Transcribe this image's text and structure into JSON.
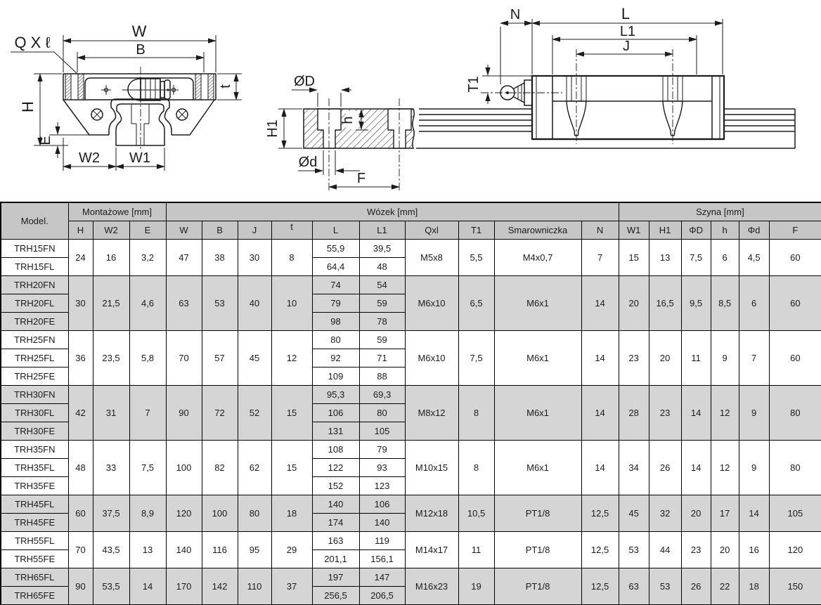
{
  "page": {
    "background": "#ffffff",
    "line_color": "#1b1b1b"
  },
  "diagrams": {
    "front_view": {
      "labels": {
        "qxl": "Q X ℓ",
        "w": "W",
        "b": "B",
        "t": "t",
        "h": "H",
        "e": "E",
        "w2": "W2",
        "w1": "W1"
      }
    },
    "rail_section": {
      "labels": {
        "d_big": "ØD",
        "h1": "H1",
        "h": "h",
        "d_small": "Ød",
        "f": "F"
      }
    },
    "side_view": {
      "labels": {
        "n": "N",
        "l": "L",
        "l1": "L1",
        "j": "J",
        "t1": "T1"
      }
    }
  },
  "table": {
    "colors": {
      "header_bg": "#c6c6c6",
      "shaded_row_bg": "#d5d5d5",
      "row_bg": "#ffffff",
      "border": "#000000"
    },
    "header": {
      "model_label": "Model.",
      "group_headers": [
        {
          "label": "Montażowe [mm]",
          "span": 3
        },
        {
          "label": "Wózek [mm]",
          "span": 10
        },
        {
          "label": "Szyna [mm]",
          "span": 6
        }
      ],
      "columns": [
        {
          "key": "H",
          "label": "H"
        },
        {
          "key": "W2",
          "label": "W2"
        },
        {
          "key": "E",
          "label": "E"
        },
        {
          "key": "W",
          "label": "W"
        },
        {
          "key": "B",
          "label": "B"
        },
        {
          "key": "J",
          "label": "J"
        },
        {
          "key": "t",
          "label": "t"
        },
        {
          "key": "L",
          "label": "L"
        },
        {
          "key": "L1",
          "label": "L1"
        },
        {
          "key": "Qxl",
          "label": "Qxl"
        },
        {
          "key": "T1",
          "label": "T1"
        },
        {
          "key": "Smar",
          "label": "Smarowniczka"
        },
        {
          "key": "N",
          "label": "N"
        },
        {
          "key": "W1",
          "label": "W1"
        },
        {
          "key": "H1",
          "label": "H1"
        },
        {
          "key": "FD",
          "label": "ΦD"
        },
        {
          "key": "h",
          "label": "h"
        },
        {
          "key": "Fd",
          "label": "Φd"
        },
        {
          "key": "F",
          "label": "F"
        }
      ]
    },
    "groups": [
      {
        "shaded": false,
        "models": [
          "TRH15FN",
          "TRH15FL"
        ],
        "merged": {
          "H": "24",
          "W2": "16",
          "E": "3,2",
          "W": "47",
          "B": "38",
          "J": "30",
          "t": "8",
          "Qxl": "M5x8",
          "T1": "5,5",
          "Smar": "M4x0,7",
          "N": "7",
          "W1": "15",
          "H1": "13",
          "FD": "7,5",
          "h": "6",
          "Fd": "4,5",
          "F": "60"
        },
        "L": [
          "55,9",
          "64,4"
        ],
        "L1": [
          "39,5",
          "48"
        ]
      },
      {
        "shaded": true,
        "models": [
          "TRH20FN",
          "TRH20FL",
          "TRH20FE"
        ],
        "merged": {
          "H": "30",
          "W2": "21,5",
          "E": "4,6",
          "W": "63",
          "B": "53",
          "J": "40",
          "t": "10",
          "Qxl": "M6x10",
          "T1": "6,5",
          "Smar": "M6x1",
          "N": "14",
          "W1": "20",
          "H1": "16,5",
          "FD": "9,5",
          "h": "8,5",
          "Fd": "6",
          "F": "60"
        },
        "L": [
          "74",
          "79",
          "98"
        ],
        "L1": [
          "54",
          "59",
          "78"
        ]
      },
      {
        "shaded": false,
        "models": [
          "TRH25FN",
          "TRH25FL",
          "TRH25FE"
        ],
        "merged": {
          "H": "36",
          "W2": "23,5",
          "E": "5,8",
          "W": "70",
          "B": "57",
          "J": "45",
          "t": "12",
          "Qxl": "M6x10",
          "T1": "7,5",
          "Smar": "M6x1",
          "N": "14",
          "W1": "23",
          "H1": "20",
          "FD": "11",
          "h": "9",
          "Fd": "7",
          "F": "60"
        },
        "L": [
          "80",
          "92",
          "109"
        ],
        "L1": [
          "59",
          "71",
          "88"
        ]
      },
      {
        "shaded": true,
        "models": [
          "TRH30FN",
          "TRH30FL",
          "TRH30FE"
        ],
        "merged": {
          "H": "42",
          "W2": "31",
          "E": "7",
          "W": "90",
          "B": "72",
          "J": "52",
          "t": "15",
          "Qxl": "M8x12",
          "T1": "8",
          "Smar": "M6x1",
          "N": "14",
          "W1": "28",
          "H1": "23",
          "FD": "14",
          "h": "12",
          "Fd": "9",
          "F": "80"
        },
        "L": [
          "95,3",
          "106",
          "131"
        ],
        "L1": [
          "69,3",
          "80",
          "105"
        ]
      },
      {
        "shaded": false,
        "models": [
          "TRH35FN",
          "TRH35FL",
          "TRH35FE"
        ],
        "merged": {
          "H": "48",
          "W2": "33",
          "E": "7,5",
          "W": "100",
          "B": "82",
          "J": "62",
          "t": "15",
          "Qxl": "M10x15",
          "T1": "8",
          "Smar": "M6x1",
          "N": "14",
          "W1": "34",
          "H1": "26",
          "FD": "14",
          "h": "12",
          "Fd": "9",
          "F": "80"
        },
        "L": [
          "108",
          "122",
          "152"
        ],
        "L1": [
          "79",
          "93",
          "123"
        ]
      },
      {
        "shaded": true,
        "models": [
          "TRH45FL",
          "TRH45FE"
        ],
        "merged": {
          "H": "60",
          "W2": "37,5",
          "E": "8,9",
          "W": "120",
          "B": "100",
          "J": "80",
          "t": "18",
          "Qxl": "M12x18",
          "T1": "10,5",
          "Smar": "PT1/8",
          "N": "12,5",
          "W1": "45",
          "H1": "32",
          "FD": "20",
          "h": "17",
          "Fd": "14",
          "F": "105"
        },
        "L": [
          "140",
          "174"
        ],
        "L1": [
          "106",
          "140"
        ]
      },
      {
        "shaded": false,
        "models": [
          "TRH55FL",
          "TRH55FE"
        ],
        "merged": {
          "H": "70",
          "W2": "43,5",
          "E": "13",
          "W": "140",
          "B": "116",
          "J": "95",
          "t": "29",
          "Qxl": "M14x17",
          "T1": "11",
          "Smar": "PT1/8",
          "N": "12,5",
          "W1": "53",
          "H1": "44",
          "FD": "23",
          "h": "20",
          "Fd": "16",
          "F": "120"
        },
        "L": [
          "163",
          "201,1"
        ],
        "L1": [
          "119",
          "156,1"
        ]
      },
      {
        "shaded": true,
        "models": [
          "TRH65FL",
          "TRH65FE"
        ],
        "merged": {
          "H": "90",
          "W2": "53,5",
          "E": "14",
          "W": "170",
          "B": "142",
          "J": "110",
          "t": "37",
          "Qxl": "M16x23",
          "T1": "19",
          "Smar": "PT1/8",
          "N": "12,5",
          "W1": "63",
          "H1": "53",
          "FD": "26",
          "h": "22",
          "Fd": "18",
          "F": "150"
        },
        "L": [
          "197",
          "256,5"
        ],
        "L1": [
          "147",
          "206,5"
        ]
      }
    ]
  }
}
